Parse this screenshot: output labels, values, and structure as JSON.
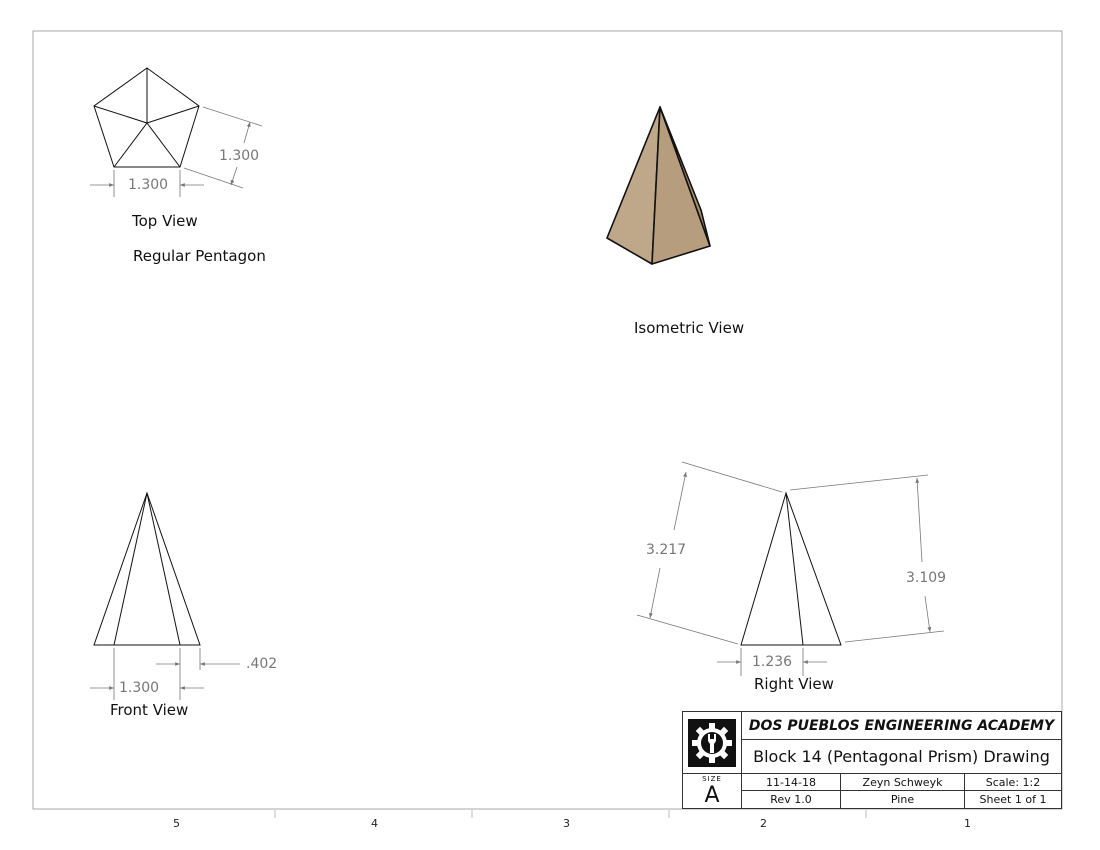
{
  "views": {
    "top": {
      "label": "Top View",
      "note": "Regular Pentagon",
      "dim_side": "1.300",
      "dim_width": "1.300"
    },
    "isometric": {
      "label": "Isometric View",
      "fill": "#BFA789"
    },
    "front": {
      "label": "Front View",
      "dim_base": "1.300",
      "dim_offset": ".402"
    },
    "right": {
      "label": "Right View",
      "dim_height_left": "3.217",
      "dim_height_right": "3.109",
      "dim_base": "1.236"
    }
  },
  "zones": [
    "5",
    "4",
    "3",
    "2",
    "1"
  ],
  "title_block": {
    "organization": "DOS PUEBLOS ENGINEERING ACADEMY",
    "drawing_title": "Block 14 (Pentagonal Prism) Drawing",
    "size_label": "SIZE",
    "size_value": "A",
    "date": "11-14-18",
    "author": "Zeyn Schweyk",
    "scale": "Scale: 1:2",
    "revision": "Rev 1.0",
    "material": "Pine",
    "sheet": "Sheet 1 of 1",
    "logo_icon": "gear-wrench-logo"
  }
}
